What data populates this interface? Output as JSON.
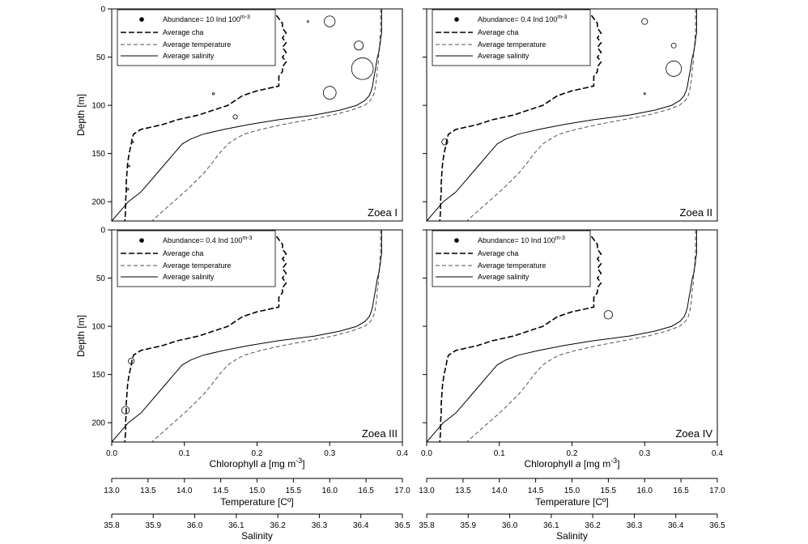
{
  "chart_data": [
    {
      "type": "line",
      "panel_label": "Zoea I",
      "legend": {
        "abundance": "Abundance= 10 Ind 100",
        "abundance_exp": "m-3",
        "cha": "Average cha",
        "temperature": "Average temperature",
        "salinity": "Average salinity"
      },
      "abundance_ref": 10,
      "bubbles": [
        {
          "x": 0.27,
          "depth": 13,
          "value": 0.5
        },
        {
          "x": 0.3,
          "depth": 13,
          "value": 50
        },
        {
          "x": 0.34,
          "depth": 38,
          "value": 35
        },
        {
          "x": 0.345,
          "depth": 62,
          "value": 200
        },
        {
          "x": 0.3,
          "depth": 87,
          "value": 70
        },
        {
          "x": 0.14,
          "depth": 88,
          "value": 2
        },
        {
          "x": 0.17,
          "depth": 112,
          "value": 8
        },
        {
          "x": 0.029,
          "depth": 138,
          "value": 1
        },
        {
          "x": 0.024,
          "depth": 163,
          "value": 1
        },
        {
          "x": 0.022,
          "depth": 187,
          "value": 2
        }
      ]
    },
    {
      "type": "line",
      "panel_label": "Zoea II",
      "legend": {
        "abundance": "Abundance= 0.4 Ind 100",
        "abundance_exp": "m-3",
        "cha": "Average cha",
        "temperature": "Average temperature",
        "salinity": "Average salinity"
      },
      "abundance_ref": 0.4,
      "bubbles": [
        {
          "x": 0.3,
          "depth": 13,
          "value": 0.6
        },
        {
          "x": 0.34,
          "depth": 38,
          "value": 0.4
        },
        {
          "x": 0.34,
          "depth": 62,
          "value": 4
        },
        {
          "x": 0.3,
          "depth": 88,
          "value": 0.05
        },
        {
          "x": 0.025,
          "depth": 138,
          "value": 0.6
        }
      ]
    },
    {
      "type": "line",
      "panel_label": "Zoea III",
      "legend": {
        "abundance": "Abundance= 0.4 Ind 100",
        "abundance_exp": "m-3",
        "cha": "Average cha",
        "temperature": "Average temperature",
        "salinity": "Average salinity"
      },
      "abundance_ref": 0.4,
      "bubbles": [
        {
          "x": 0.027,
          "depth": 136,
          "value": 0.6
        },
        {
          "x": 0.019,
          "depth": 187,
          "value": 1
        }
      ]
    },
    {
      "type": "line",
      "panel_label": "Zoea IV",
      "legend": {
        "abundance": "Abundance= 10 Ind 100",
        "abundance_exp": "m-3",
        "cha": "Average cha",
        "temperature": "Average temperature",
        "salinity": "Average salinity"
      },
      "abundance_ref": 10,
      "bubbles": [
        {
          "x": 0.25,
          "depth": 88,
          "value": 30
        }
      ]
    }
  ],
  "profiles": {
    "depth": [
      0,
      5,
      10,
      15,
      20,
      25,
      30,
      35,
      40,
      45,
      50,
      55,
      60,
      65,
      70,
      75,
      80,
      85,
      90,
      95,
      100,
      105,
      110,
      115,
      120,
      125,
      130,
      135,
      140,
      150,
      160,
      170,
      180,
      190,
      200,
      210,
      220
    ],
    "cha": [
      0.22,
      0.225,
      0.23,
      0.235,
      0.235,
      0.24,
      0.235,
      0.24,
      0.235,
      0.24,
      0.235,
      0.24,
      0.235,
      0.235,
      0.23,
      0.23,
      0.23,
      0.2,
      0.18,
      0.17,
      0.16,
      0.14,
      0.12,
      0.09,
      0.07,
      0.04,
      0.03,
      0.028,
      0.027,
      0.024,
      0.022,
      0.021,
      0.02,
      0.02,
      0.019,
      0.019,
      0.018
    ],
    "temperature": [
      16.7,
      16.7,
      16.7,
      16.7,
      16.7,
      16.7,
      16.69,
      16.69,
      16.68,
      16.68,
      16.67,
      16.67,
      16.66,
      16.65,
      16.65,
      16.64,
      16.63,
      16.62,
      16.6,
      16.56,
      16.48,
      16.3,
      16.05,
      15.7,
      15.35,
      15.05,
      14.82,
      14.7,
      14.6,
      14.48,
      14.38,
      14.27,
      14.14,
      14.0,
      13.85,
      13.7,
      13.55
    ],
    "salinity": [
      36.45,
      36.45,
      36.45,
      36.45,
      36.45,
      36.45,
      36.448,
      36.447,
      36.445,
      36.443,
      36.44,
      36.438,
      36.436,
      36.434,
      36.432,
      36.43,
      36.428,
      36.425,
      36.42,
      36.41,
      36.39,
      36.35,
      36.29,
      36.2,
      36.13,
      36.07,
      36.02,
      35.99,
      35.97,
      35.95,
      35.93,
      35.91,
      35.89,
      35.87,
      35.84,
      35.82,
      35.8
    ]
  },
  "axes": {
    "ylabel": "Depth [m]",
    "yticks": [
      0,
      50,
      100,
      150,
      200
    ],
    "ylim": [
      0,
      220
    ],
    "chl_label": "Chlorophyll a [mg m-3]",
    "chl_label_main": "Chlorophyll ",
    "chl_label_italic": "a",
    "chl_label_unit": " [mg m",
    "chl_label_exp": "-3",
    "chl_label_close": "]",
    "chl_ticks": [
      0.0,
      0.1,
      0.2,
      0.3,
      0.4
    ],
    "chl_tick_labels": [
      "0.0",
      "0.1",
      "0.2",
      "0.3",
      "0.4"
    ],
    "chl_lim": [
      0,
      0.4
    ],
    "temp_label": "Temperature [Cº]",
    "temp_ticks": [
      13.0,
      13.5,
      14.0,
      14.5,
      15.0,
      15.5,
      16.0,
      16.5,
      17.0
    ],
    "temp_tick_labels": [
      "13.0",
      "13.5",
      "14.0",
      "14.5",
      "15.0",
      "15.5",
      "16.0",
      "16.5",
      "17.0"
    ],
    "temp_lim": [
      13,
      17
    ],
    "sal_label": "Salinity",
    "sal_ticks": [
      35.8,
      35.9,
      36.0,
      36.1,
      36.2,
      36.3,
      36.4,
      36.5
    ],
    "sal_tick_labels": [
      "35.8",
      "35.9",
      "36.0",
      "36.1",
      "36.2",
      "36.3",
      "36.4",
      "36.5"
    ],
    "sal_lim": [
      35.8,
      36.5
    ]
  }
}
